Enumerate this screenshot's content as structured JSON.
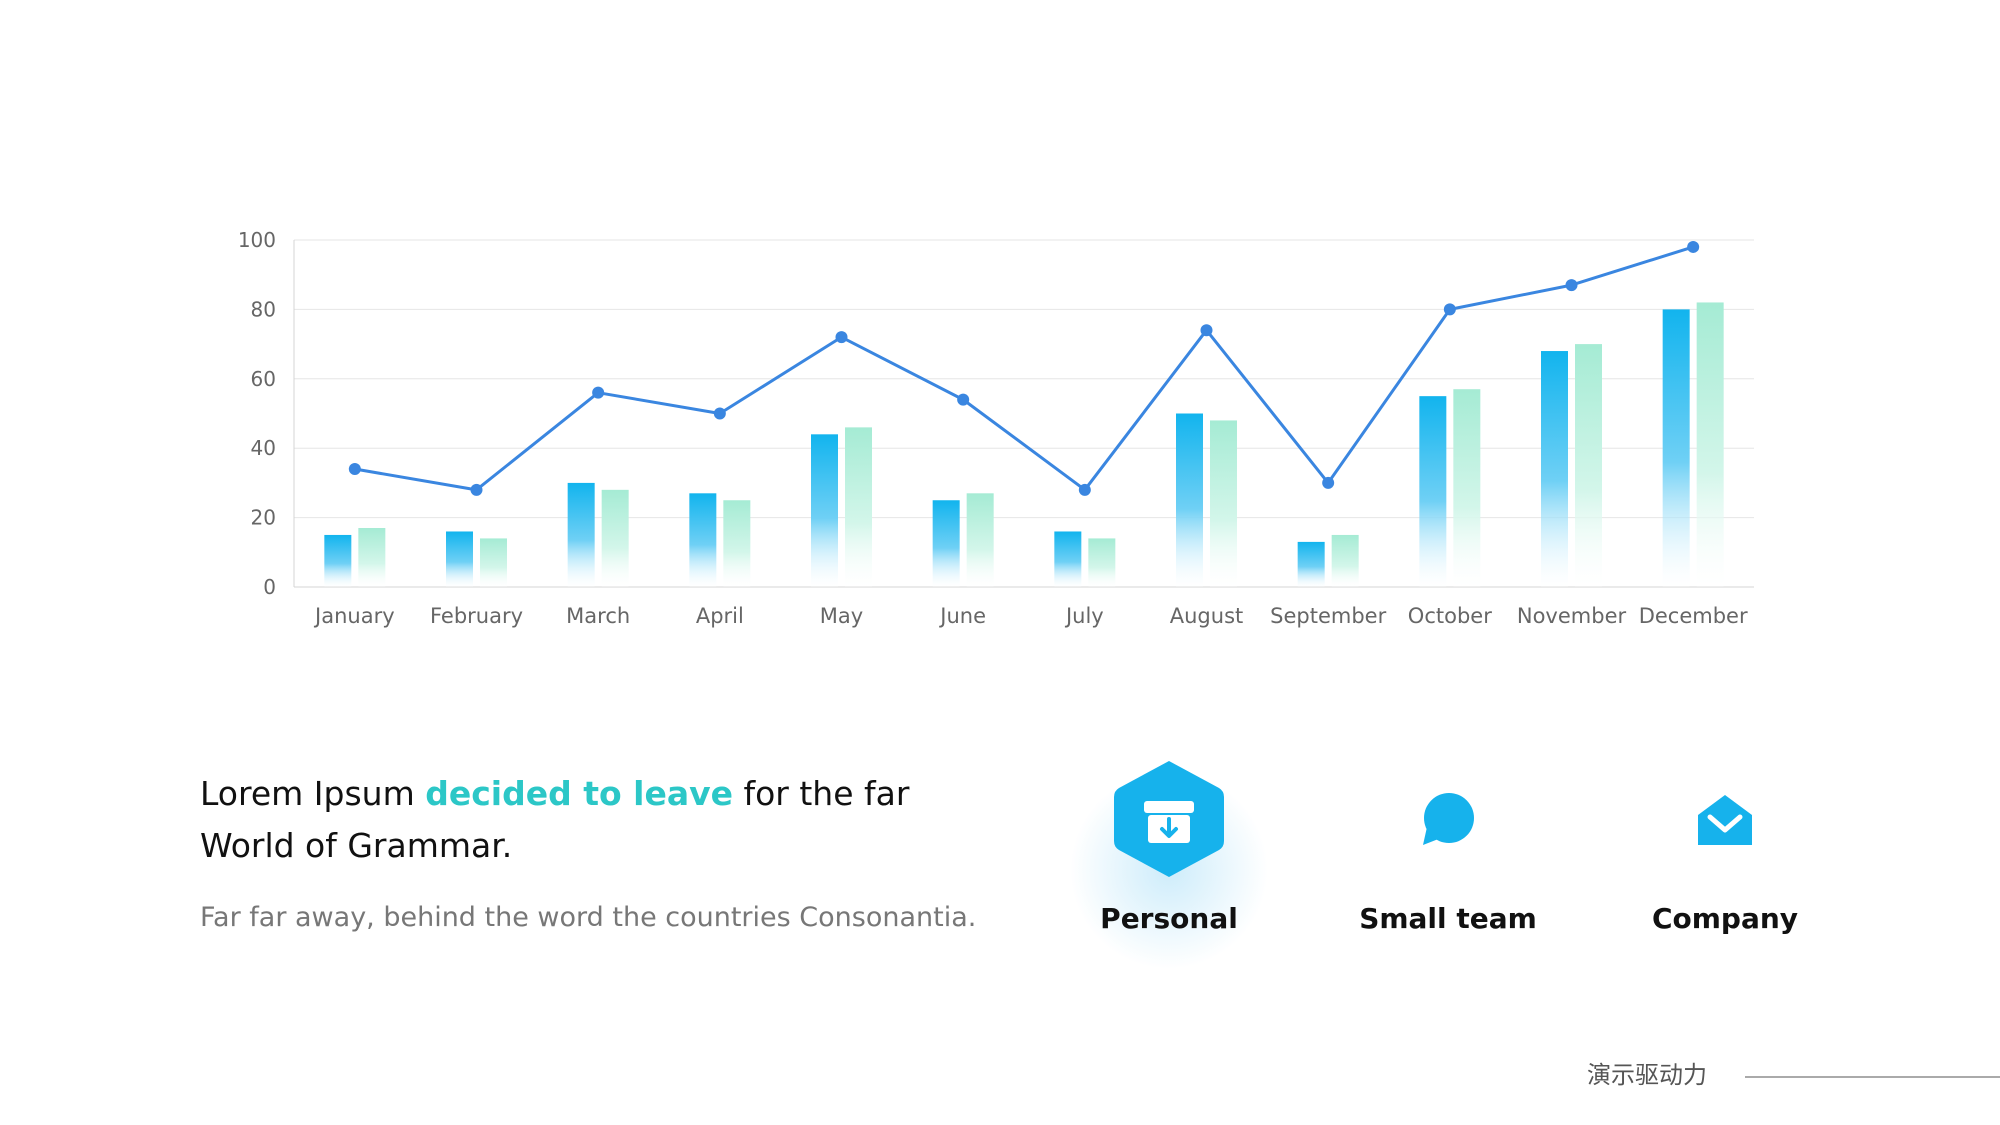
{
  "chart_data": {
    "type": "bar",
    "categories": [
      "January",
      "February",
      "March",
      "April",
      "May",
      "June",
      "July",
      "August",
      "September",
      "October",
      "November",
      "December"
    ],
    "series": [
      {
        "type": "bar",
        "color": "#1ab5ee",
        "values": [
          15,
          16,
          30,
          27,
          44,
          25,
          16,
          50,
          13,
          55,
          68,
          80
        ]
      },
      {
        "type": "bar",
        "color": "#a7ecd6",
        "values": [
          17,
          14,
          28,
          25,
          46,
          27,
          14,
          48,
          15,
          57,
          70,
          82
        ]
      },
      {
        "type": "line",
        "color": "#3a86e0",
        "values": [
          34,
          28,
          56,
          50,
          72,
          54,
          28,
          74,
          30,
          80,
          87,
          98
        ]
      }
    ],
    "ylim": [
      0,
      100
    ],
    "yticks": [
      0,
      20,
      40,
      60,
      80,
      100
    ],
    "grid": true
  },
  "headline": {
    "part1": "Lorem Ipsum ",
    "accent": "decided to leave",
    "part2": " for the far",
    "line2": "World of Grammar."
  },
  "subtext": "Far far away, behind the word the countries Consonantia.",
  "features": [
    {
      "label": "Personal",
      "icon": "archive-download-icon",
      "active": true
    },
    {
      "label": "Small team",
      "icon": "chat-bubble-icon",
      "active": false
    },
    {
      "label": "Company",
      "icon": "envelope-icon",
      "active": false
    }
  ],
  "footer": {
    "text": "演示驱动力"
  },
  "colors": {
    "accent": "#2cc7c7",
    "icon": "#1ab5ee"
  }
}
